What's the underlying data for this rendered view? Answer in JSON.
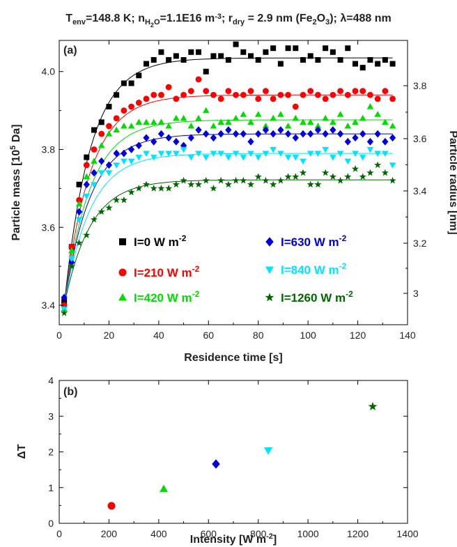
{
  "title": {
    "parts": [
      {
        "t": "T",
        "s": ""
      },
      {
        "t": "env",
        "s": "sub"
      },
      {
        "t": "=148.8 K; n",
        "s": ""
      },
      {
        "t": "H",
        "s": "sub"
      },
      {
        "t": "2",
        "s": "subsub"
      },
      {
        "t": "O",
        "s": "sub"
      },
      {
        "t": "=1.1E16 m",
        "s": ""
      },
      {
        "t": "-3",
        "s": "sup"
      },
      {
        "t": "; r",
        "s": ""
      },
      {
        "t": "dry",
        "s": "sub"
      },
      {
        "t": " = 2.9 nm (Fe",
        "s": ""
      },
      {
        "t": "2",
        "s": "sub"
      },
      {
        "t": "O",
        "s": ""
      },
      {
        "t": "3",
        "s": "sub"
      },
      {
        "t": "); λ=488 nm",
        "s": ""
      }
    ]
  },
  "chart_data": [
    {
      "type": "scatter",
      "panel_label": "(a)",
      "xlabel": "Residence time [s]",
      "ylabel": {
        "base": "Particle mass [10",
        "sup": "5",
        "tail": " Da]"
      },
      "y2label": "Particle radius [nm]",
      "xlim": [
        0,
        140
      ],
      "ylim": [
        3.35,
        4.08
      ],
      "xticks": [
        "0",
        "20",
        "40",
        "60",
        "80",
        "100",
        "120",
        "140"
      ],
      "yticks": [
        "3.4",
        "3.6",
        "3.8",
        "4.0"
      ],
      "y2ticks": [
        "3",
        "3.2",
        "3.4",
        "3.6",
        "3.8"
      ],
      "legend_position": "bottom-center",
      "series": [
        {
          "name": "I=0 W m",
          "name_sup": "-2",
          "marker": "square",
          "color": "#000000",
          "fit": {
            "y0": 3.4,
            "ymax": 4.035,
            "tau": 10.5
          },
          "x": [
            2,
            5,
            8,
            11,
            14,
            17,
            20,
            23,
            26,
            29,
            32,
            35,
            38,
            41,
            44,
            47,
            50,
            53,
            56,
            59,
            62,
            65,
            68,
            71,
            74,
            77,
            80,
            83,
            86,
            89,
            92,
            95,
            98,
            101,
            104,
            107,
            110,
            113,
            116,
            119,
            122,
            125,
            128,
            131,
            134
          ],
          "y": [
            3.41,
            3.55,
            3.71,
            3.78,
            3.85,
            3.87,
            3.91,
            3.94,
            3.97,
            3.97,
            3.99,
            4.02,
            4.03,
            4.05,
            4.03,
            4.04,
            4.03,
            4.05,
            4.05,
            4.0,
            4.04,
            4.04,
            4.03,
            4.07,
            4.05,
            4.04,
            4.03,
            4.05,
            4.06,
            4.02,
            4.06,
            4.06,
            4.03,
            4.04,
            4.03,
            4.06,
            4.05,
            4.03,
            4.06,
            4.02,
            4.01,
            4.03,
            4.02,
            4.03,
            4.02
          ]
        },
        {
          "name": "I=210 W m",
          "name_sup": "-2",
          "marker": "circle",
          "color": "#ff0000",
          "fit": {
            "y0": 3.4,
            "ymax": 3.94,
            "tau": 10.5
          },
          "x": [
            2,
            5,
            8,
            11,
            14,
            17,
            20,
            23,
            26,
            29,
            32,
            35,
            38,
            41,
            44,
            47,
            50,
            53,
            56,
            59,
            62,
            65,
            68,
            71,
            74,
            77,
            80,
            83,
            86,
            89,
            92,
            95,
            98,
            101,
            104,
            107,
            110,
            113,
            116,
            119,
            122,
            125,
            128,
            131,
            134
          ],
          "y": [
            3.4,
            3.55,
            3.67,
            3.76,
            3.8,
            3.84,
            3.86,
            3.88,
            3.9,
            3.91,
            3.92,
            3.93,
            3.94,
            3.94,
            3.96,
            3.93,
            3.94,
            3.95,
            3.98,
            3.95,
            3.94,
            3.93,
            3.95,
            3.94,
            3.94,
            3.95,
            3.93,
            3.95,
            3.93,
            3.94,
            3.94,
            3.91,
            3.94,
            3.95,
            3.94,
            3.93,
            3.94,
            3.95,
            3.94,
            3.95,
            3.95,
            3.94,
            3.93,
            3.95,
            3.93
          ]
        },
        {
          "name": "I=420 W m",
          "name_sup": "-2",
          "marker": "triangle-up",
          "color": "#00dd00",
          "fit": {
            "y0": 3.4,
            "ymax": 3.876,
            "tau": 10.5
          },
          "x": [
            2,
            5,
            8,
            11,
            14,
            17,
            20,
            23,
            26,
            29,
            32,
            35,
            38,
            41,
            44,
            47,
            50,
            53,
            56,
            59,
            62,
            65,
            68,
            71,
            74,
            77,
            80,
            83,
            86,
            89,
            92,
            95,
            98,
            101,
            104,
            107,
            110,
            113,
            116,
            119,
            122,
            125,
            128,
            131,
            134
          ],
          "y": [
            3.39,
            3.54,
            3.66,
            3.73,
            3.77,
            3.81,
            3.84,
            3.85,
            3.86,
            3.86,
            3.87,
            3.87,
            3.87,
            3.87,
            3.86,
            3.88,
            3.88,
            3.86,
            3.88,
            3.9,
            3.86,
            3.87,
            3.87,
            3.88,
            3.89,
            3.87,
            3.89,
            3.86,
            3.88,
            3.89,
            3.86,
            3.88,
            3.87,
            3.87,
            3.86,
            3.88,
            3.87,
            3.89,
            3.86,
            3.87,
            3.88,
            3.91,
            3.89,
            3.87,
            3.86
          ]
        },
        {
          "name": "I=630 W m",
          "name_sup": "-2",
          "marker": "diamond",
          "color": "#0000dd",
          "fit": {
            "y0": 3.4,
            "ymax": 3.84,
            "tau": 10.5
          },
          "x": [
            2,
            5,
            8,
            11,
            14,
            17,
            20,
            23,
            26,
            29,
            32,
            35,
            38,
            41,
            44,
            47,
            50,
            53,
            56,
            59,
            62,
            65,
            68,
            71,
            74,
            77,
            80,
            83,
            86,
            89,
            92,
            95,
            98,
            101,
            104,
            107,
            110,
            113,
            116,
            119,
            122,
            125,
            128,
            131,
            134
          ],
          "y": [
            3.42,
            3.51,
            3.64,
            3.71,
            3.74,
            3.77,
            3.76,
            3.79,
            3.79,
            3.8,
            3.81,
            3.83,
            3.82,
            3.84,
            3.83,
            3.82,
            3.81,
            3.83,
            3.85,
            3.84,
            3.83,
            3.84,
            3.85,
            3.84,
            3.84,
            3.82,
            3.84,
            3.85,
            3.84,
            3.85,
            3.84,
            3.83,
            3.84,
            3.84,
            3.85,
            3.84,
            3.85,
            3.84,
            3.82,
            3.83,
            3.84,
            3.82,
            3.84,
            3.82,
            3.83
          ]
        },
        {
          "name": "I=840 W m",
          "name_sup": "-2",
          "marker": "triangle-down",
          "color": "#00e5ff",
          "fit": {
            "y0": 3.4,
            "ymax": 3.79,
            "tau": 10.5
          },
          "x": [
            2,
            5,
            8,
            11,
            14,
            17,
            20,
            23,
            26,
            29,
            32,
            35,
            38,
            41,
            44,
            47,
            50,
            53,
            56,
            59,
            62,
            65,
            68,
            71,
            74,
            77,
            80,
            83,
            86,
            89,
            92,
            95,
            98,
            101,
            104,
            107,
            110,
            113,
            116,
            119,
            122,
            125,
            128,
            131,
            134
          ],
          "y": [
            3.39,
            3.52,
            3.62,
            3.68,
            3.71,
            3.74,
            3.74,
            3.76,
            3.77,
            3.77,
            3.78,
            3.79,
            3.78,
            3.79,
            3.79,
            3.79,
            3.8,
            3.78,
            3.79,
            3.78,
            3.79,
            3.79,
            3.78,
            3.79,
            3.78,
            3.79,
            3.78,
            3.79,
            3.8,
            3.79,
            3.78,
            3.78,
            3.77,
            3.79,
            3.79,
            3.8,
            3.78,
            3.79,
            3.77,
            3.79,
            3.78,
            3.8,
            3.79,
            3.79,
            3.76
          ]
        },
        {
          "name": "I=1260 W m",
          "name_sup": "-2",
          "marker": "star",
          "color": "#006600",
          "fit": {
            "y0": 3.4,
            "ymax": 3.722,
            "tau": 10.5
          },
          "x": [
            2,
            5,
            8,
            11,
            14,
            17,
            20,
            23,
            26,
            29,
            32,
            35,
            38,
            41,
            44,
            47,
            50,
            53,
            56,
            59,
            62,
            65,
            68,
            71,
            74,
            77,
            80,
            83,
            86,
            89,
            92,
            95,
            98,
            101,
            104,
            107,
            110,
            113,
            116,
            119,
            122,
            125,
            128,
            131,
            134
          ],
          "y": [
            3.38,
            3.5,
            3.56,
            3.58,
            3.62,
            3.64,
            3.65,
            3.67,
            3.67,
            3.69,
            3.7,
            3.71,
            3.7,
            3.7,
            3.7,
            3.71,
            3.72,
            3.71,
            3.71,
            3.72,
            3.7,
            3.72,
            3.71,
            3.72,
            3.72,
            3.71,
            3.73,
            3.72,
            3.71,
            3.72,
            3.73,
            3.73,
            3.74,
            3.71,
            3.71,
            3.74,
            3.73,
            3.72,
            3.73,
            3.75,
            3.73,
            3.74,
            3.76,
            3.74,
            3.72
          ]
        }
      ]
    },
    {
      "type": "scatter",
      "panel_label": "(b)",
      "xlabel": {
        "base": "Intensity [W m",
        "sup": "-2",
        "tail": "]"
      },
      "ylabel": "ΔT",
      "xlim": [
        0,
        1400
      ],
      "ylim": [
        0,
        4
      ],
      "xticks": [
        "0",
        "200",
        "400",
        "600",
        "800",
        "1000",
        "1200",
        "1400"
      ],
      "yticks": [
        "0",
        "1",
        "2",
        "3",
        "4"
      ],
      "points": [
        {
          "x": 210,
          "y": 0.49,
          "marker": "circle",
          "color": "#ff0000"
        },
        {
          "x": 420,
          "y": 0.96,
          "marker": "triangle-up",
          "color": "#00dd00"
        },
        {
          "x": 630,
          "y": 1.66,
          "marker": "diamond",
          "color": "#0000dd"
        },
        {
          "x": 840,
          "y": 2.04,
          "marker": "triangle-down",
          "color": "#00e5ff"
        },
        {
          "x": 1260,
          "y": 3.27,
          "marker": "star",
          "color": "#006600"
        }
      ]
    }
  ]
}
